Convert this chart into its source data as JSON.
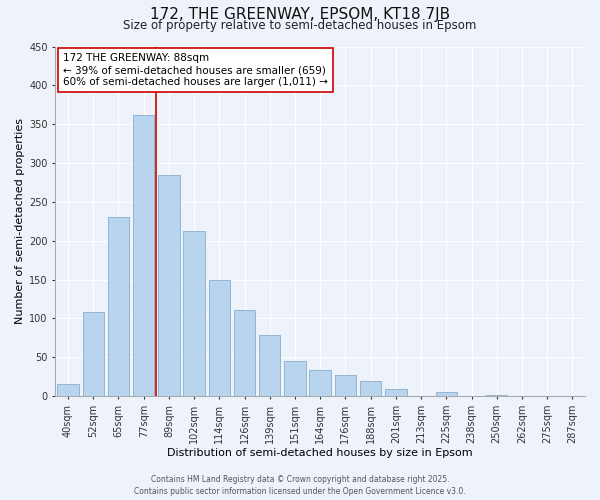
{
  "title": "172, THE GREENWAY, EPSOM, KT18 7JB",
  "subtitle": "Size of property relative to semi-detached houses in Epsom",
  "bar_labels": [
    "40sqm",
    "52sqm",
    "65sqm",
    "77sqm",
    "89sqm",
    "102sqm",
    "114sqm",
    "126sqm",
    "139sqm",
    "151sqm",
    "164sqm",
    "176sqm",
    "188sqm",
    "201sqm",
    "213sqm",
    "225sqm",
    "238sqm",
    "250sqm",
    "262sqm",
    "275sqm",
    "287sqm"
  ],
  "bar_values": [
    16,
    108,
    230,
    362,
    285,
    212,
    150,
    111,
    79,
    45,
    34,
    27,
    20,
    9,
    0,
    5,
    0,
    1,
    0,
    0,
    0
  ],
  "bar_color": "#b8d4ee",
  "bar_edge_color": "#8aaecc",
  "vline_color": "#cc0000",
  "annotation_title": "172 THE GREENWAY: 88sqm",
  "annotation_line1": "← 39% of semi-detached houses are smaller (659)",
  "annotation_line2": "60% of semi-detached houses are larger (1,011) →",
  "annotation_box_color": "#ffffff",
  "annotation_box_edge": "#cc0000",
  "xlabel": "Distribution of semi-detached houses by size in Epsom",
  "ylabel": "Number of semi-detached properties",
  "ylim": [
    0,
    450
  ],
  "yticks": [
    0,
    50,
    100,
    150,
    200,
    250,
    300,
    350,
    400,
    450
  ],
  "footer1": "Contains HM Land Registry data © Crown copyright and database right 2025.",
  "footer2": "Contains public sector information licensed under the Open Government Licence v3.0.",
  "bg_color": "#eef2fa",
  "grid_color": "#ffffff",
  "title_fontsize": 11,
  "subtitle_fontsize": 8.5,
  "tick_fontsize": 7,
  "label_fontsize": 8,
  "annotation_fontsize": 7.5,
  "footer_fontsize": 5.5
}
